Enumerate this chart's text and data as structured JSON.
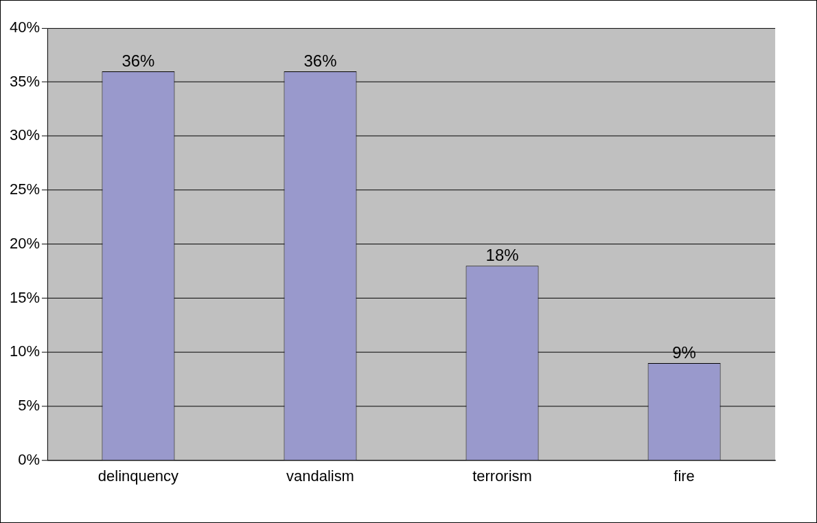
{
  "chart_data": {
    "type": "bar",
    "categories": [
      "delinquency",
      "vandalism",
      "terrorism",
      "fire"
    ],
    "values": [
      36,
      36,
      18,
      9
    ],
    "color": "#9999cc",
    "value_labels": [
      "36%",
      "36%",
      "18%",
      "9%"
    ],
    "ylim": [
      0,
      40
    ],
    "yticks": [
      {
        "value": 0,
        "label": "0%"
      },
      {
        "value": 5,
        "label": "5%"
      },
      {
        "value": 10,
        "label": "10%"
      },
      {
        "value": 15,
        "label": "15%"
      },
      {
        "value": 20,
        "label": "20%"
      },
      {
        "value": 25,
        "label": "25%"
      },
      {
        "value": 30,
        "label": "30%"
      },
      {
        "value": 35,
        "label": "35%"
      },
      {
        "value": 40,
        "label": "40%"
      }
    ],
    "grid": "y",
    "legend": false
  }
}
